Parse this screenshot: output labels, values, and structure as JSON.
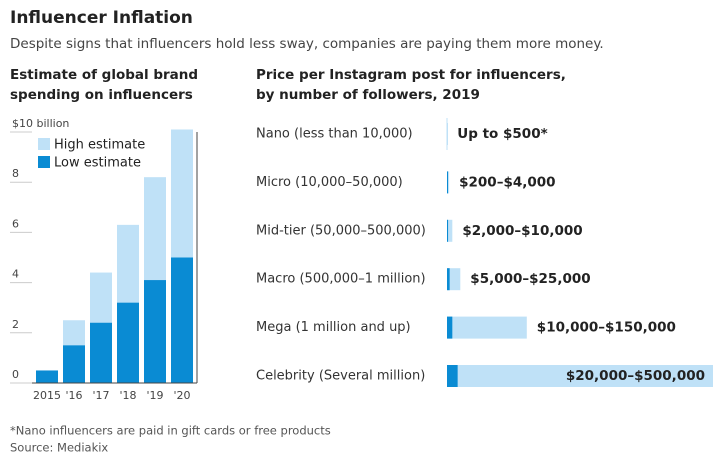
{
  "title": "Influencer Inflation",
  "subtitle": "Despite signs that influencers hold less sway, companies are paying them more money.",
  "footnote": "*Nano influencers are paid in gift cards or free products",
  "source": "Source: Mediakix",
  "chart_data": [
    {
      "type": "bar",
      "title": [
        "Estimate of global brand",
        "spending on influencers"
      ],
      "categories": [
        "2015",
        "'16",
        "'17",
        "'18",
        "'19",
        "'20"
      ],
      "series": [
        {
          "name": "High estimate",
          "color": "#bfe1f7",
          "values": [
            null,
            2.5,
            4.4,
            6.3,
            8.2,
            10.1
          ]
        },
        {
          "name": "Low estimate",
          "color": "#0a8bd3",
          "values": [
            0.5,
            1.5,
            2.4,
            3.2,
            4.1,
            5.0
          ]
        }
      ],
      "ylim": [
        0,
        10
      ],
      "yticks": [
        0,
        2,
        4,
        6,
        8,
        {
          "value": 10,
          "label": "$10 billion"
        }
      ],
      "legend": "top-left"
    },
    {
      "type": "range-bar",
      "title": [
        "Price per Instagram post for influencers,",
        "by number of followers, 2019"
      ],
      "categories": [
        "Nano (less than 10,000)",
        "Micro (10,000–50,000)",
        "Mid-tier (50,000–500,000)",
        "Macro (500,000–1 million)",
        "Mega (1 million and up)",
        "Celebrity (Several million)"
      ],
      "series": [
        {
          "color": "#bfe1f7",
          "values": [
            500,
            4000,
            10000,
            25000,
            150000,
            500000
          ]
        },
        {
          "color": "#0a8bd3",
          "values": [
            null,
            200,
            2000,
            5000,
            10000,
            20000
          ]
        }
      ],
      "value_labels": [
        "Up to $500*",
        "$200–$4,000",
        "$2,000–$10,000",
        "$5,000–$25,000",
        "$10,000–$150,000",
        "$20,000–$500,000"
      ],
      "xlim": [
        0,
        500000
      ]
    }
  ]
}
